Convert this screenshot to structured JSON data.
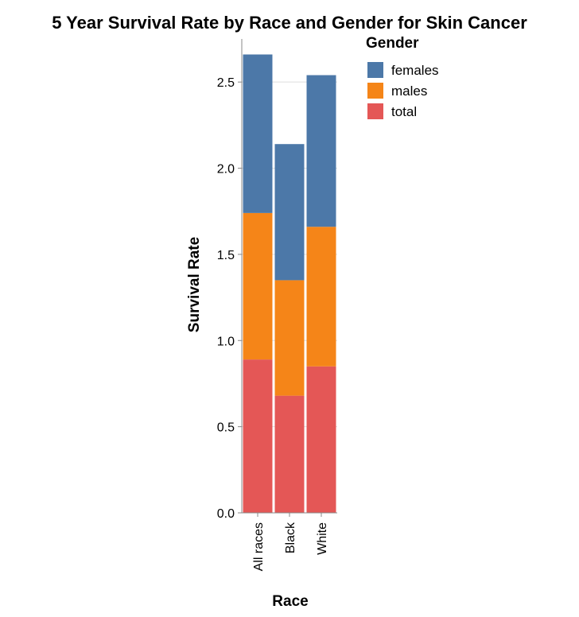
{
  "chart_data": {
    "type": "bar",
    "stacked": true,
    "title": "5 Year Survival Rate by Race and Gender for Skin Cancer",
    "xlabel": "Race",
    "ylabel": "Survival Rate",
    "categories": [
      "All races",
      "Black",
      "White"
    ],
    "series": [
      {
        "name": "total",
        "color": "#e45756",
        "values": [
          0.89,
          0.68,
          0.85
        ]
      },
      {
        "name": "males",
        "color": "#f58518",
        "values": [
          0.85,
          0.67,
          0.81
        ]
      },
      {
        "name": "females",
        "color": "#4c78a8",
        "values": [
          0.92,
          0.79,
          0.88
        ]
      }
    ],
    "ylim": [
      0,
      2.75
    ],
    "yticks": [
      0.0,
      0.5,
      1.0,
      1.5,
      2.0,
      2.5
    ],
    "ytick_labels": [
      "0.0",
      "0.5",
      "1.0",
      "1.5",
      "2.0",
      "2.5"
    ],
    "grid": true,
    "legend": {
      "title": "Gender",
      "position": "top-right",
      "entries": [
        {
          "label": "females",
          "color": "#4c78a8"
        },
        {
          "label": "males",
          "color": "#f58518"
        },
        {
          "label": "total",
          "color": "#e45756"
        }
      ]
    }
  }
}
